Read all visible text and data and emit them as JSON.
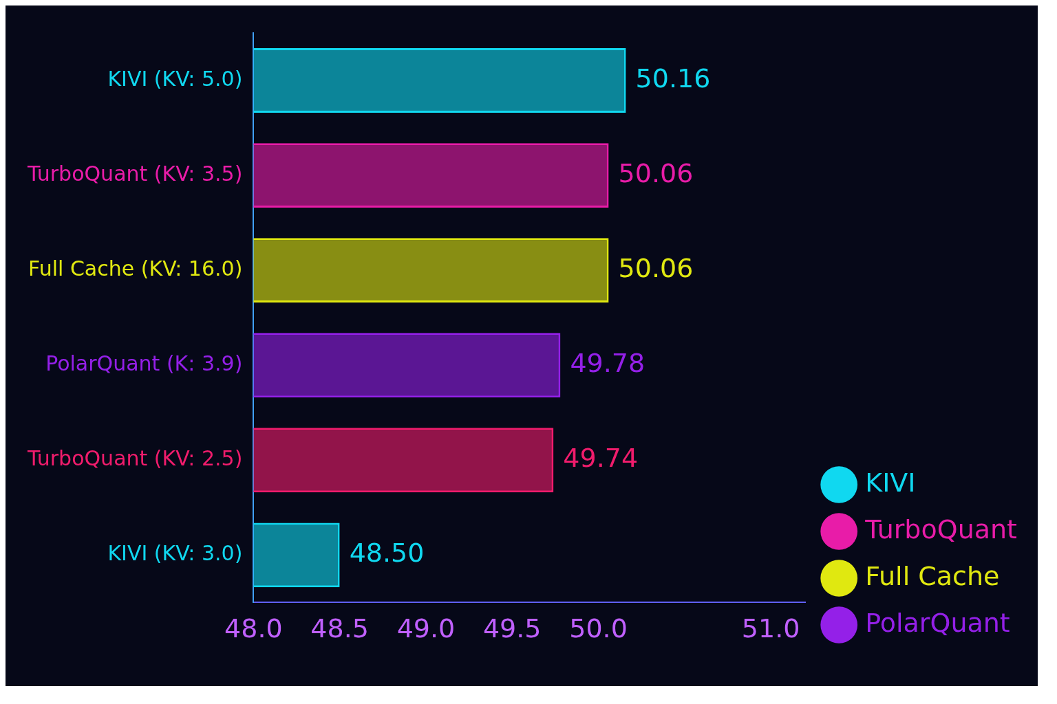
{
  "chart_data": {
    "type": "bar",
    "orientation": "horizontal",
    "stacked": true,
    "categories": [
      "KIVI (KV: 5.0)",
      "TurboQuant (KV: 3.5)",
      "Full Cache (KV: 16.0)",
      "PolarQuant (K: 3.9)",
      "TurboQuant (KV: 2.5)",
      "KIVI (KV: 3.0)"
    ],
    "series": [
      {
        "name": "KIVI",
        "color": "#10d8f0",
        "values": [
          50.16,
          null,
          null,
          null,
          null,
          48.5
        ],
        "value_labels": [
          "50.16",
          null,
          null,
          null,
          null,
          "48.50"
        ]
      },
      {
        "name": "TurboQuant",
        "color": "#e81ca8",
        "colors": [
          "#e81ca8",
          "#e81ca8",
          "#e81ca8",
          "#e81ca8",
          "#f01c6c",
          "#e81ca8"
        ],
        "values": [
          null,
          50.06,
          null,
          null,
          49.74,
          null
        ],
        "value_labels": [
          null,
          "50.06",
          null,
          null,
          "49.74",
          null
        ]
      },
      {
        "name": "Full Cache",
        "color": "#e0e810",
        "values": [
          null,
          null,
          50.06,
          null,
          null,
          null
        ],
        "value_labels": [
          null,
          null,
          "50.06",
          null,
          null,
          null
        ]
      },
      {
        "name": "PolarQuant",
        "color": "#9420e8",
        "values": [
          null,
          null,
          null,
          49.78,
          null,
          null
        ],
        "value_labels": [
          null,
          null,
          null,
          "49.78",
          null,
          null
        ]
      }
    ],
    "xlim": [
      48,
      51.2
    ],
    "xticks": [
      {
        "value": 48,
        "label": "48.0"
      },
      {
        "value": 48.5,
        "label": "48.5"
      },
      {
        "value": 49,
        "label": "49.0"
      },
      {
        "value": 49.5,
        "label": "49.5"
      },
      {
        "value": 50,
        "label": "50.0"
      },
      {
        "value": 51,
        "label": "51.0"
      }
    ],
    "grid": false,
    "legend": "right"
  }
}
